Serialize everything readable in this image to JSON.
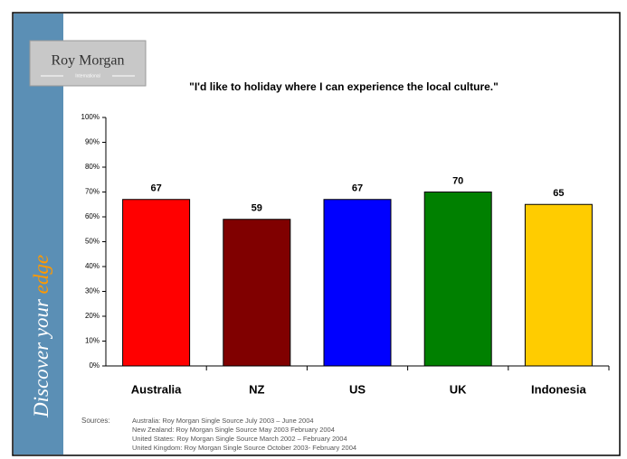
{
  "branding": {
    "logo": "Roy Morgan",
    "logo_sub": "International",
    "tagline_start": "Discover your",
    "tagline_end": "edge"
  },
  "chart_data": {
    "type": "bar",
    "title": "\"I'd like to holiday where I can experience the local culture.\"",
    "categories": [
      "Australia",
      "NZ",
      "US",
      "UK",
      "Indonesia"
    ],
    "values": [
      67,
      59,
      67,
      70,
      65
    ],
    "colors": [
      "#ff0000",
      "#800000",
      "#0000ff",
      "#008000",
      "#ffcc00"
    ],
    "ylim": [
      0,
      100
    ],
    "yticks": [
      {
        "value": 0,
        "label": "0%"
      },
      {
        "value": 10,
        "label": "10%"
      },
      {
        "value": 20,
        "label": "20%"
      },
      {
        "value": 30,
        "label": "30%"
      },
      {
        "value": 40,
        "label": "40%"
      },
      {
        "value": 50,
        "label": "50%"
      },
      {
        "value": 60,
        "label": "60%"
      },
      {
        "value": 70,
        "label": "70%"
      },
      {
        "value": 80,
        "label": "80%"
      },
      {
        "value": 90,
        "label": "90%"
      },
      {
        "value": 100,
        "label": "100%"
      }
    ],
    "grid": false,
    "sources": {
      "label": "Sources:",
      "lines": [
        "Australia: Roy Morgan Single Source July 2003 – June 2004",
        "New Zealand: Roy Morgan Single Source May 2003 February 2004",
        "United States: Roy Morgan Single Source March 2002 – February 2004",
        "United Kingdom: Roy Morgan Single Source October 2003- February 2004"
      ]
    }
  }
}
